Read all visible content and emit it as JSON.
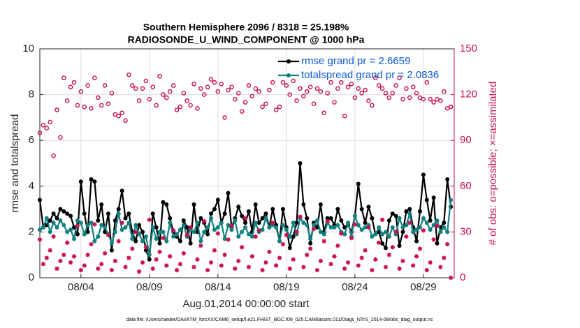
{
  "chart_data": {
    "type": "line",
    "title": "Southern Hemisphere 2096 / 8318 = 25.198%",
    "subtitle": "RADIOSONDE_U_WIND_COMPONENT @ 1000 hPa",
    "xlabel": "Aug.01,2014 00:00:00 start",
    "ylabel": "rmse and totalspread",
    "y2label": "# of obs: o=possible; ×=assimilated",
    "footnote": "data file: /Users/raeder/DAI/ATM_forcXX/CAM6_setup/f.e21.FHIST_BGC.f09_025.CAM6assim.011/Diags_NTrS_2014-08/obs_diag_output.nc",
    "xlim": [
      0,
      30.25
    ],
    "xticks": [
      {
        "value": 3,
        "label": "08/04"
      },
      {
        "value": 8,
        "label": "08/09"
      },
      {
        "value": 13,
        "label": "08/14"
      },
      {
        "value": 18,
        "label": "08/19"
      },
      {
        "value": 23,
        "label": "08/24"
      },
      {
        "value": 28,
        "label": "08/29"
      }
    ],
    "ylim": [
      0,
      10
    ],
    "yticks": [
      0,
      2,
      4,
      6,
      8,
      10
    ],
    "y2lim": [
      0,
      150
    ],
    "y2ticks": [
      0,
      30,
      60,
      90,
      120,
      150
    ],
    "y2color": "#c8104f",
    "grid": true,
    "legend": "upper right",
    "legend_text_color": "#0a5ad8",
    "x": [
      0,
      0.25,
      0.5,
      0.75,
      1,
      1.25,
      1.5,
      1.75,
      2,
      2.25,
      2.5,
      2.75,
      3,
      3.25,
      3.5,
      3.75,
      4,
      4.25,
      4.5,
      4.75,
      5,
      5.25,
      5.5,
      5.75,
      6,
      6.25,
      6.5,
      6.75,
      7,
      7.25,
      7.5,
      7.75,
      8,
      8.25,
      8.5,
      8.75,
      9,
      9.25,
      9.5,
      9.75,
      10,
      10.25,
      10.5,
      10.75,
      11,
      11.25,
      11.5,
      11.75,
      12,
      12.25,
      12.5,
      12.75,
      13,
      13.25,
      13.5,
      13.75,
      14,
      14.25,
      14.5,
      14.75,
      15,
      15.25,
      15.5,
      15.75,
      16,
      16.25,
      16.5,
      16.75,
      17,
      17.25,
      17.5,
      17.75,
      18,
      18.25,
      18.5,
      18.75,
      19,
      19.25,
      19.5,
      19.75,
      20,
      20.25,
      20.5,
      20.75,
      21,
      21.25,
      21.5,
      21.75,
      22,
      22.25,
      22.5,
      22.75,
      23,
      23.25,
      23.5,
      23.75,
      24,
      24.25,
      24.5,
      24.75,
      25,
      25.25,
      25.5,
      25.75,
      26,
      26.25,
      26.5,
      26.75,
      27,
      27.25,
      27.5,
      27.75,
      28,
      28.25,
      28.5,
      28.75,
      29,
      29.25,
      29.5,
      29.75,
      30
    ],
    "series": [
      {
        "name": "rmse grand pr = 2.6659",
        "color": "#000000",
        "marker": "dot",
        "line": true,
        "values": [
          3.4,
          2.2,
          2.3,
          2.5,
          2.8,
          2.6,
          3.0,
          2.9,
          2.8,
          2.7,
          2.2,
          1.9,
          4.2,
          2.8,
          2.0,
          4.3,
          4.2,
          2.5,
          3.2,
          2.0,
          2.8,
          1.2,
          2.5,
          3.0,
          3.8,
          2.6,
          2.8,
          2.0,
          1.6,
          2.3,
          2.0,
          1.2,
          0.8,
          2.8,
          2.2,
          1.5,
          3.3,
          3.2,
          2.6,
          2.0,
          1.8,
          1.6,
          2.5,
          2.2,
          1.5,
          3.2,
          2.0,
          2.6,
          2.4,
          1.9,
          2.8,
          3.0,
          3.4,
          2.4,
          2.8,
          3.7,
          2.2,
          2.6,
          3.1,
          2.7,
          2.4,
          2.9,
          2.0,
          3.2,
          2.4,
          2.6,
          2.8,
          2.2,
          3.0,
          2.3,
          1.6,
          3.0,
          2.2,
          1.3,
          1.8,
          2.4,
          5.0,
          3.2,
          2.6,
          1.5,
          2.4,
          2.2,
          3.2,
          2.0,
          2.6,
          2.6,
          2.3,
          3.0,
          2.5,
          2.2,
          2.3,
          2.0,
          2.7,
          4.1,
          3.0,
          2.4,
          3.1,
          2.6,
          1.9,
          2.0,
          1.5,
          1.3,
          2.5,
          2.8,
          2.7,
          1.4,
          2.0,
          2.9,
          3.0,
          2.2,
          1.6,
          2.9,
          4.5,
          3.4,
          2.5,
          3.5,
          1.5,
          2.2,
          2.4,
          4.3,
          3.1
        ]
      },
      {
        "name": "totalspread grand pr = 2.0836",
        "color": "#128080",
        "marker": "dot",
        "line": true,
        "values": [
          2.1,
          2.2,
          2.6,
          2.0,
          2.4,
          2.2,
          2.5,
          2.3,
          2.0,
          2.1,
          1.7,
          2.5,
          2.4,
          1.9,
          2.3,
          2.4,
          1.6,
          1.8,
          2.3,
          2.2,
          1.9,
          1.5,
          2.0,
          2.8,
          2.1,
          2.2,
          2.4,
          1.7,
          2.3,
          1.9,
          1.6,
          1.8,
          1.0,
          2.2,
          1.7,
          2.0,
          2.0,
          1.6,
          2.4,
          1.8,
          1.9,
          2.1,
          2.3,
          1.8,
          2.1,
          2.0,
          2.4,
          1.6,
          2.0,
          2.2,
          2.6,
          2.1,
          2.2,
          2.4,
          1.7,
          2.3,
          2.1,
          2.5,
          1.8,
          2.0,
          2.2,
          1.9,
          1.8,
          2.4,
          2.0,
          2.1,
          2.6,
          2.2,
          2.3,
          2.2,
          1.6,
          2.3,
          2.1,
          1.8,
          2.4,
          1.9,
          2.6,
          2.4,
          2.3,
          1.7,
          2.3,
          2.5,
          2.0,
          1.9,
          2.4,
          2.2,
          2.2,
          2.3,
          2.0,
          1.9,
          2.4,
          1.8,
          2.7,
          2.3,
          2.1,
          2.2,
          2.3,
          1.8,
          1.9,
          2.2,
          1.9,
          2.0,
          1.8,
          2.2,
          1.9,
          2.6,
          2.2,
          2.3,
          2.8,
          2.0,
          2.1,
          2.2,
          2.6,
          2.4,
          2.1,
          2.3,
          2.5,
          2.0,
          2.2,
          2.0,
          3.4
        ]
      },
      {
        "color": "#c8104f",
        "marker": "circle",
        "line": false,
        "axis": "y2",
        "values": [
          95,
          100,
          98,
          102,
          80,
          110,
          92,
          131,
          116,
          125,
          128,
          113,
          122,
          112,
          126,
          111,
          131,
          118,
          113,
          126,
          114,
          121,
          107,
          106,
          108,
          103,
          133,
          126,
          124,
          116,
          124,
          129,
          117,
          125,
          113,
          132,
          120,
          118,
          122,
          126,
          110,
          112,
          121,
          116,
          113,
          127,
          111,
          124,
          120,
          125,
          130,
          128,
          122,
          127,
          105,
          123,
          125,
          117,
          121,
          109,
          115,
          126,
          119,
          124,
          122,
          112,
          114,
          123,
          128,
          110,
          112,
          128,
          126,
          120,
          129,
          116,
          124,
          119,
          122,
          125,
          114,
          124,
          122,
          108,
          121,
          128,
          115,
          124,
          128,
          106,
          125,
          127,
          118,
          124,
          121,
          123,
          116,
          113,
          131,
          126,
          124,
          121,
          118,
          121,
          126,
          131,
          117,
          124,
          118,
          125,
          121,
          118,
          117,
          128,
          117,
          115,
          117,
          116,
          122,
          111,
          112
        ]
      },
      {
        "color": "#c8104f",
        "marker": "star",
        "line": false,
        "axis": "y2",
        "values": [
          25,
          9,
          13,
          18,
          27,
          6,
          11,
          15,
          23,
          10,
          14,
          34,
          5,
          8,
          15,
          22,
          35,
          6,
          9,
          16,
          28,
          5,
          11,
          24,
          36,
          7,
          13,
          19,
          30,
          4,
          10,
          20,
          38,
          6,
          12,
          17,
          26,
          8,
          14,
          31,
          5,
          9,
          16,
          28,
          33,
          7,
          12,
          21,
          37,
          5,
          10,
          18,
          29,
          8,
          15,
          25,
          34,
          6,
          11,
          20,
          39,
          7,
          14,
          27,
          31,
          5,
          10,
          17,
          36,
          8,
          13,
          22,
          28,
          6,
          12,
          30,
          40,
          7,
          15,
          19,
          32,
          5,
          11,
          24,
          37,
          9,
          14,
          21,
          29,
          6,
          10,
          26,
          35,
          8,
          13,
          18,
          33,
          5,
          12,
          23,
          38,
          7,
          15,
          20,
          30,
          6,
          11,
          27,
          36,
          8,
          14,
          19,
          31,
          5,
          10,
          25,
          34,
          7,
          13,
          22,
          0
        ]
      }
    ]
  }
}
